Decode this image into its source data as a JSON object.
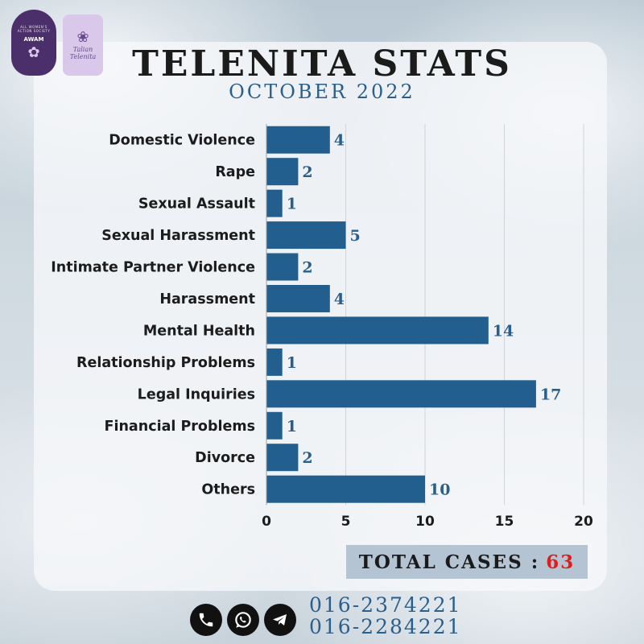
{
  "logos": {
    "awam": {
      "ring_text": "ALL WOMEN'S ACTION SOCIETY",
      "mark": "AWAM"
    },
    "telenita": {
      "text": "Talian Telenita"
    }
  },
  "header": {
    "title": "TELENITA STATS",
    "subtitle": "OCTOBER 2022"
  },
  "chart_data": {
    "type": "bar",
    "orientation": "horizontal",
    "categories": [
      "Domestic Violence",
      "Rape",
      "Sexual Assault",
      "Sexual Harassment",
      "Intimate Partner Violence",
      "Harassment",
      "Mental Health",
      "Relationship Problems",
      "Legal Inquiries",
      "Financial Problems",
      "Divorce",
      "Others"
    ],
    "values": [
      4,
      2,
      1,
      5,
      2,
      4,
      14,
      1,
      17,
      1,
      2,
      10
    ],
    "xlim": [
      0,
      20
    ],
    "xticks": [
      0,
      5,
      10,
      15,
      20
    ],
    "grid": true,
    "bar_color": "#225f8f",
    "grid_color": "#cfd4d9"
  },
  "total": {
    "label": "TOTAL CASES :",
    "value": "63",
    "value_color": "#e01d1d"
  },
  "contact": {
    "icons": [
      "phone-icon",
      "whatsapp-icon",
      "telegram-icon"
    ],
    "phones": [
      "016-2374221",
      "016-2284221"
    ]
  }
}
